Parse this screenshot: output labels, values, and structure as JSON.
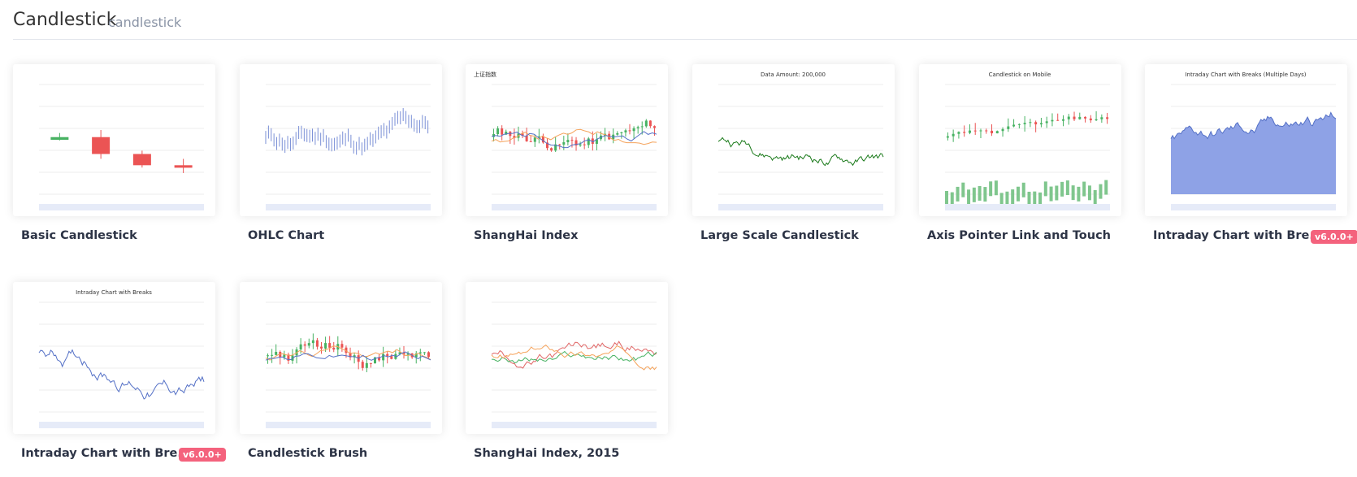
{
  "header": {
    "title": "Candlestick",
    "subtitle": "candlestick"
  },
  "cards": [
    {
      "title": "Basic Candlestick"
    },
    {
      "title": "OHLC Chart"
    },
    {
      "title": "ShangHai Index",
      "thumb_title": "上证指数"
    },
    {
      "title": "Large Scale Candlestick",
      "thumb_title": "Data Amount: 200,000"
    },
    {
      "title": "Axis Pointer Link and Touch",
      "thumb_title": "Candlestick on Mobile"
    },
    {
      "title": "Intraday Chart with Bre...",
      "badge": "v6.0.0+",
      "thumb_title": "Intraday Chart with Breaks (Multiple Days)"
    },
    {
      "title": "Intraday Chart with Bre...",
      "badge": "v6.0.0+",
      "thumb_title": "Intraday Chart with Breaks"
    },
    {
      "title": "Candlestick Brush"
    },
    {
      "title": "ShangHai Index, 2015"
    }
  ]
}
